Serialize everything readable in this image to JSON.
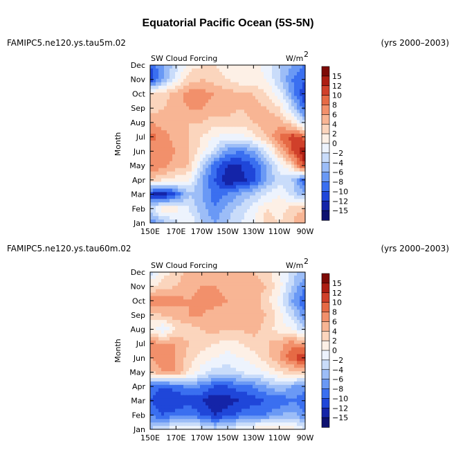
{
  "title": "Equatorial Pacific Ocean (5S-5N)",
  "colors": {
    "scale": [
      "#0d1170",
      "#1424a8",
      "#1f46d9",
      "#3a6ff0",
      "#6a99f5",
      "#9cbdf7",
      "#c9dcfa",
      "#edf3fd",
      "#fdf0e6",
      "#fbd5bd",
      "#f8b594",
      "#f2906b",
      "#e66a45",
      "#d0402a",
      "#ad1d12",
      "#7d0a06"
    ]
  },
  "chart_data": [
    {
      "type": "heatmap",
      "case": "FAMIPC5.ne120.ys.tau5m.02",
      "years": "(yrs 2000–2003)",
      "variable": "SW Cloud Forcing",
      "units_base": "W/m",
      "units_exp": "2",
      "ylabel": "Month",
      "x_ticks": [
        "150E",
        "170E",
        "170W",
        "150W",
        "130W",
        "110W",
        "90W"
      ],
      "y_ticks": [
        "Jan",
        "Feb",
        "Mar",
        "Apr",
        "May",
        "Jun",
        "Jul",
        "Aug",
        "Sep",
        "Oct",
        "Nov",
        "Dec"
      ],
      "colorbar_labels": [
        "15",
        "12",
        "10",
        "8",
        "6",
        "4",
        "2",
        "0",
        "−2",
        "−4",
        "−6",
        "−8",
        "−10",
        "−12",
        "−15"
      ],
      "x": [
        150,
        160,
        170,
        180,
        190,
        200,
        210,
        220,
        230,
        240,
        250,
        260,
        270
      ],
      "grid_values": [
        [
          -8,
          -5,
          -3,
          0,
          -4,
          -6,
          -4,
          -2,
          0,
          3,
          2,
          4,
          6
        ],
        [
          -3,
          2,
          1,
          -2,
          -5,
          -8,
          -5,
          -3,
          -1,
          2,
          1,
          3,
          4
        ],
        [
          -12,
          -14,
          -10,
          -4,
          -6,
          -9,
          -8,
          -6,
          -4,
          -2,
          0,
          -3,
          -6
        ],
        [
          4,
          2,
          1,
          0,
          -6,
          -10,
          -14,
          -13,
          -11,
          -6,
          -3,
          -4,
          -10
        ],
        [
          8,
          7,
          5,
          4,
          -3,
          -9,
          -12,
          -12,
          -10,
          -6,
          -1,
          3,
          12
        ],
        [
          6,
          7,
          6,
          4,
          1,
          -3,
          -7,
          -8,
          -6,
          -2,
          4,
          10,
          14
        ],
        [
          9,
          7,
          5,
          4,
          2,
          0,
          -1,
          -1,
          1,
          4,
          8,
          11,
          9
        ],
        [
          6,
          5,
          4,
          4,
          4,
          3,
          3,
          3,
          4,
          6,
          5,
          2,
          -4
        ],
        [
          3,
          4,
          5,
          6,
          6,
          5,
          5,
          4,
          5,
          4,
          2,
          -3,
          -10
        ],
        [
          2,
          3,
          5,
          7,
          7,
          6,
          5,
          4,
          4,
          2,
          -1,
          -7,
          -12
        ],
        [
          -12,
          -6,
          -1,
          3,
          4,
          3,
          2,
          1,
          1,
          0,
          -4,
          -8,
          -10
        ],
        [
          -10,
          -6,
          -3,
          1,
          2,
          2,
          1,
          1,
          1,
          -1,
          -4,
          -6,
          -8
        ]
      ]
    },
    {
      "type": "heatmap",
      "case": "FAMIPC5.ne120.ys.tau60m.02",
      "years": "(yrs 2000–2003)",
      "variable": "SW Cloud Forcing",
      "units_base": "W/m",
      "units_exp": "2",
      "ylabel": "Month",
      "x_ticks": [
        "150E",
        "170E",
        "170W",
        "150W",
        "130W",
        "110W",
        "90W"
      ],
      "y_ticks": [
        "Jan",
        "Feb",
        "Mar",
        "Apr",
        "May",
        "Jun",
        "Jul",
        "Aug",
        "Sep",
        "Oct",
        "Nov",
        "Dec"
      ],
      "colorbar_labels": [
        "15",
        "12",
        "10",
        "8",
        "6",
        "4",
        "2",
        "0",
        "−2",
        "−4",
        "−6",
        "−8",
        "−10",
        "−12",
        "−15"
      ],
      "x": [
        150,
        160,
        170,
        180,
        190,
        200,
        210,
        220,
        230,
        240,
        250,
        260,
        270
      ],
      "grid_values": [
        [
          -4,
          -2,
          0,
          1,
          -1,
          -3,
          -2,
          0,
          1,
          3,
          2,
          1,
          -2
        ],
        [
          -8,
          -10,
          -9,
          -8,
          -10,
          -12,
          -11,
          -9,
          -8,
          -8,
          -6,
          -5,
          -8
        ],
        [
          -10,
          -12,
          -12,
          -11,
          -12,
          -14,
          -13,
          -12,
          -11,
          -10,
          -10,
          -8,
          -10
        ],
        [
          -9,
          -10,
          -9,
          -7,
          -8,
          -10,
          -10,
          -9,
          -8,
          -6,
          -4,
          -6,
          -7
        ],
        [
          4,
          6,
          6,
          2,
          -1,
          -3,
          -3,
          -2,
          -1,
          0,
          2,
          3,
          3
        ],
        [
          6,
          7,
          6,
          3,
          1,
          0,
          -1,
          0,
          1,
          3,
          6,
          10,
          12
        ],
        [
          7,
          6,
          6,
          4,
          3,
          2,
          1,
          2,
          3,
          4,
          5,
          7,
          6
        ],
        [
          1,
          -2,
          2,
          3,
          4,
          5,
          4,
          4,
          5,
          3,
          1,
          0,
          -4
        ],
        [
          3,
          4,
          5,
          6,
          6,
          5,
          5,
          5,
          5,
          4,
          1,
          -3,
          -8
        ],
        [
          7,
          8,
          7,
          6,
          7,
          7,
          6,
          5,
          5,
          3,
          -1,
          -6,
          -10
        ],
        [
          2,
          3,
          4,
          5,
          6,
          6,
          5,
          5,
          5,
          4,
          1,
          -4,
          -8
        ],
        [
          -3,
          1,
          3,
          5,
          5,
          5,
          5,
          4,
          4,
          3,
          0,
          -3,
          -5
        ]
      ]
    }
  ]
}
